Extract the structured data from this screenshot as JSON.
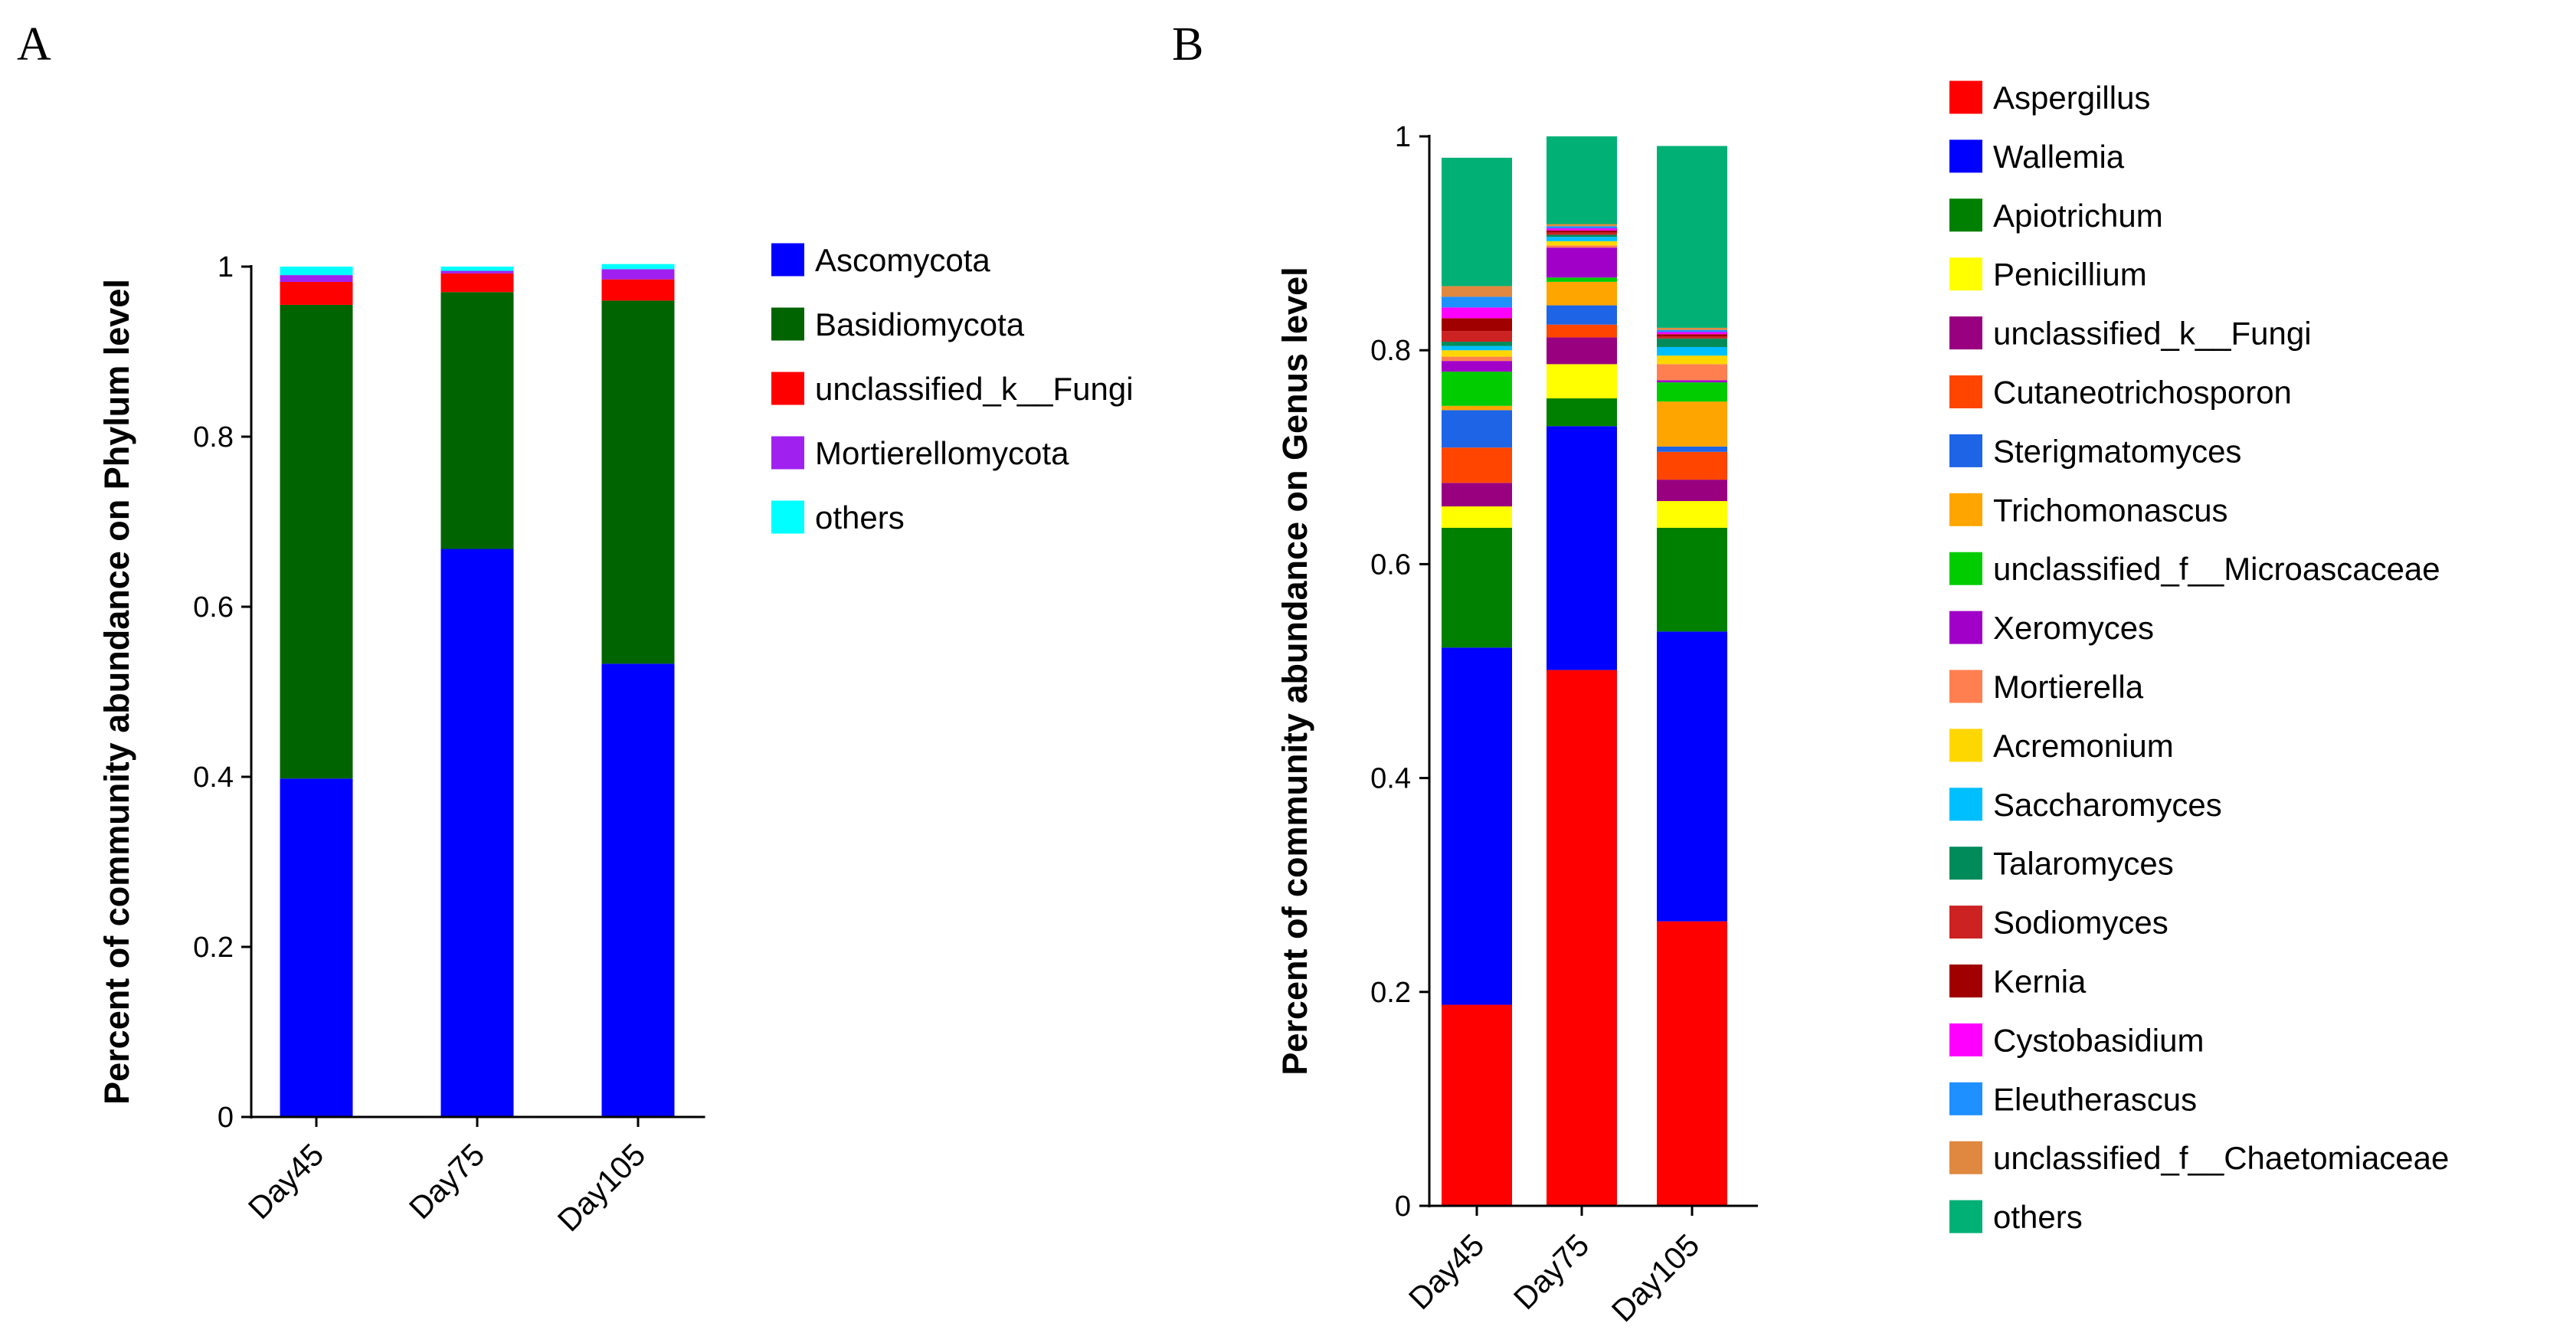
{
  "panels": {
    "A": "A",
    "B": "B"
  },
  "chart_data": [
    {
      "type": "bar",
      "stacked": true,
      "panel": "A",
      "title": "",
      "xlabel": "",
      "ylabel": "Percent of community abundance on Phylum level",
      "ylim": [
        0,
        1
      ],
      "yticks": [
        "0",
        "0.2",
        "0.4",
        "0.6",
        "0.8",
        "1"
      ],
      "categories": [
        "Day45",
        "Day75",
        "Day105"
      ],
      "series": [
        {
          "name": "Ascomycota",
          "color": "#0000FF",
          "values": [
            0.398,
            0.668,
            0.533
          ]
        },
        {
          "name": "Basidiomycota",
          "color": "#006400",
          "values": [
            0.557,
            0.302,
            0.427
          ]
        },
        {
          "name": "unclassified_k__Fungi",
          "color": "#FF0000",
          "values": [
            0.027,
            0.022,
            0.025
          ]
        },
        {
          "name": "Mortierellomycota",
          "color": "#A020F0",
          "values": [
            0.008,
            0.003,
            0.012
          ]
        },
        {
          "name": "others",
          "color": "#00FFFF",
          "values": [
            0.01,
            0.005,
            0.006
          ]
        }
      ],
      "legend_position": "right"
    },
    {
      "type": "bar",
      "stacked": true,
      "panel": "B",
      "title": "",
      "xlabel": "",
      "ylabel": "Percent of community abundance on Genus level",
      "ylim": [
        0,
        1
      ],
      "yticks": [
        "0",
        "0.2",
        "0.4",
        "0.6",
        "0.8",
        "1"
      ],
      "categories": [
        "Day45",
        "Day75",
        "Day105"
      ],
      "series": [
        {
          "name": "Aspergillus",
          "color": "#FF0000",
          "values": [
            0.188,
            0.501,
            0.266
          ]
        },
        {
          "name": "Wallemia",
          "color": "#0000FF",
          "values": [
            0.334,
            0.228,
            0.271
          ]
        },
        {
          "name": "Apiotrichum",
          "color": "#008000",
          "values": [
            0.112,
            0.026,
            0.097
          ]
        },
        {
          "name": "Penicillium",
          "color": "#FFFF00",
          "values": [
            0.02,
            0.032,
            0.025
          ]
        },
        {
          "name": "unclassified_k__Fungi",
          "color": "#990080",
          "values": [
            0.022,
            0.025,
            0.02
          ]
        },
        {
          "name": "Cutaneotrichosporon",
          "color": "#FF4500",
          "values": [
            0.033,
            0.012,
            0.026
          ]
        },
        {
          "name": "Sterigmatomyces",
          "color": "#1E64E6",
          "values": [
            0.035,
            0.018,
            0.005
          ]
        },
        {
          "name": "Trichomonascus",
          "color": "#FFA500",
          "values": [
            0.004,
            0.022,
            0.042
          ]
        },
        {
          "name": "unclassified_f__Microascaceae",
          "color": "#00CC00",
          "values": [
            0.032,
            0.004,
            0.018
          ]
        },
        {
          "name": "Xeromyces",
          "color": "#A000C8",
          "values": [
            0.01,
            0.028,
            0.002
          ]
        },
        {
          "name": "Mortierella",
          "color": "#FF7F50",
          "values": [
            0.004,
            0.002,
            0.015
          ]
        },
        {
          "name": "Acremonium",
          "color": "#FFD700",
          "values": [
            0.006,
            0.004,
            0.008
          ]
        },
        {
          "name": "Saccharomyces",
          "color": "#00BFFF",
          "values": [
            0.004,
            0.004,
            0.008
          ]
        },
        {
          "name": "Talaromyces",
          "color": "#008B5B",
          "values": [
            0.004,
            0.002,
            0.008
          ]
        },
        {
          "name": "Sodiomyces",
          "color": "#CC2222",
          "values": [
            0.01,
            0.002,
            0.002
          ]
        },
        {
          "name": "Kernia",
          "color": "#A00000",
          "values": [
            0.012,
            0.002,
            0.002
          ]
        },
        {
          "name": "Cystobasidium",
          "color": "#FF00FF",
          "values": [
            0.01,
            0.002,
            0.002
          ]
        },
        {
          "name": "Eleutherascus",
          "color": "#1E90FF",
          "values": [
            0.01,
            0.002,
            0.002
          ]
        },
        {
          "name": "unclassified_f__Chaetomiaceae",
          "color": "#E08840",
          "values": [
            0.01,
            0.002,
            0.002
          ]
        },
        {
          "name": "others",
          "color": "#00B075",
          "values": [
            0.12,
            0.082,
            0.17
          ]
        }
      ],
      "legend_position": "right"
    }
  ]
}
